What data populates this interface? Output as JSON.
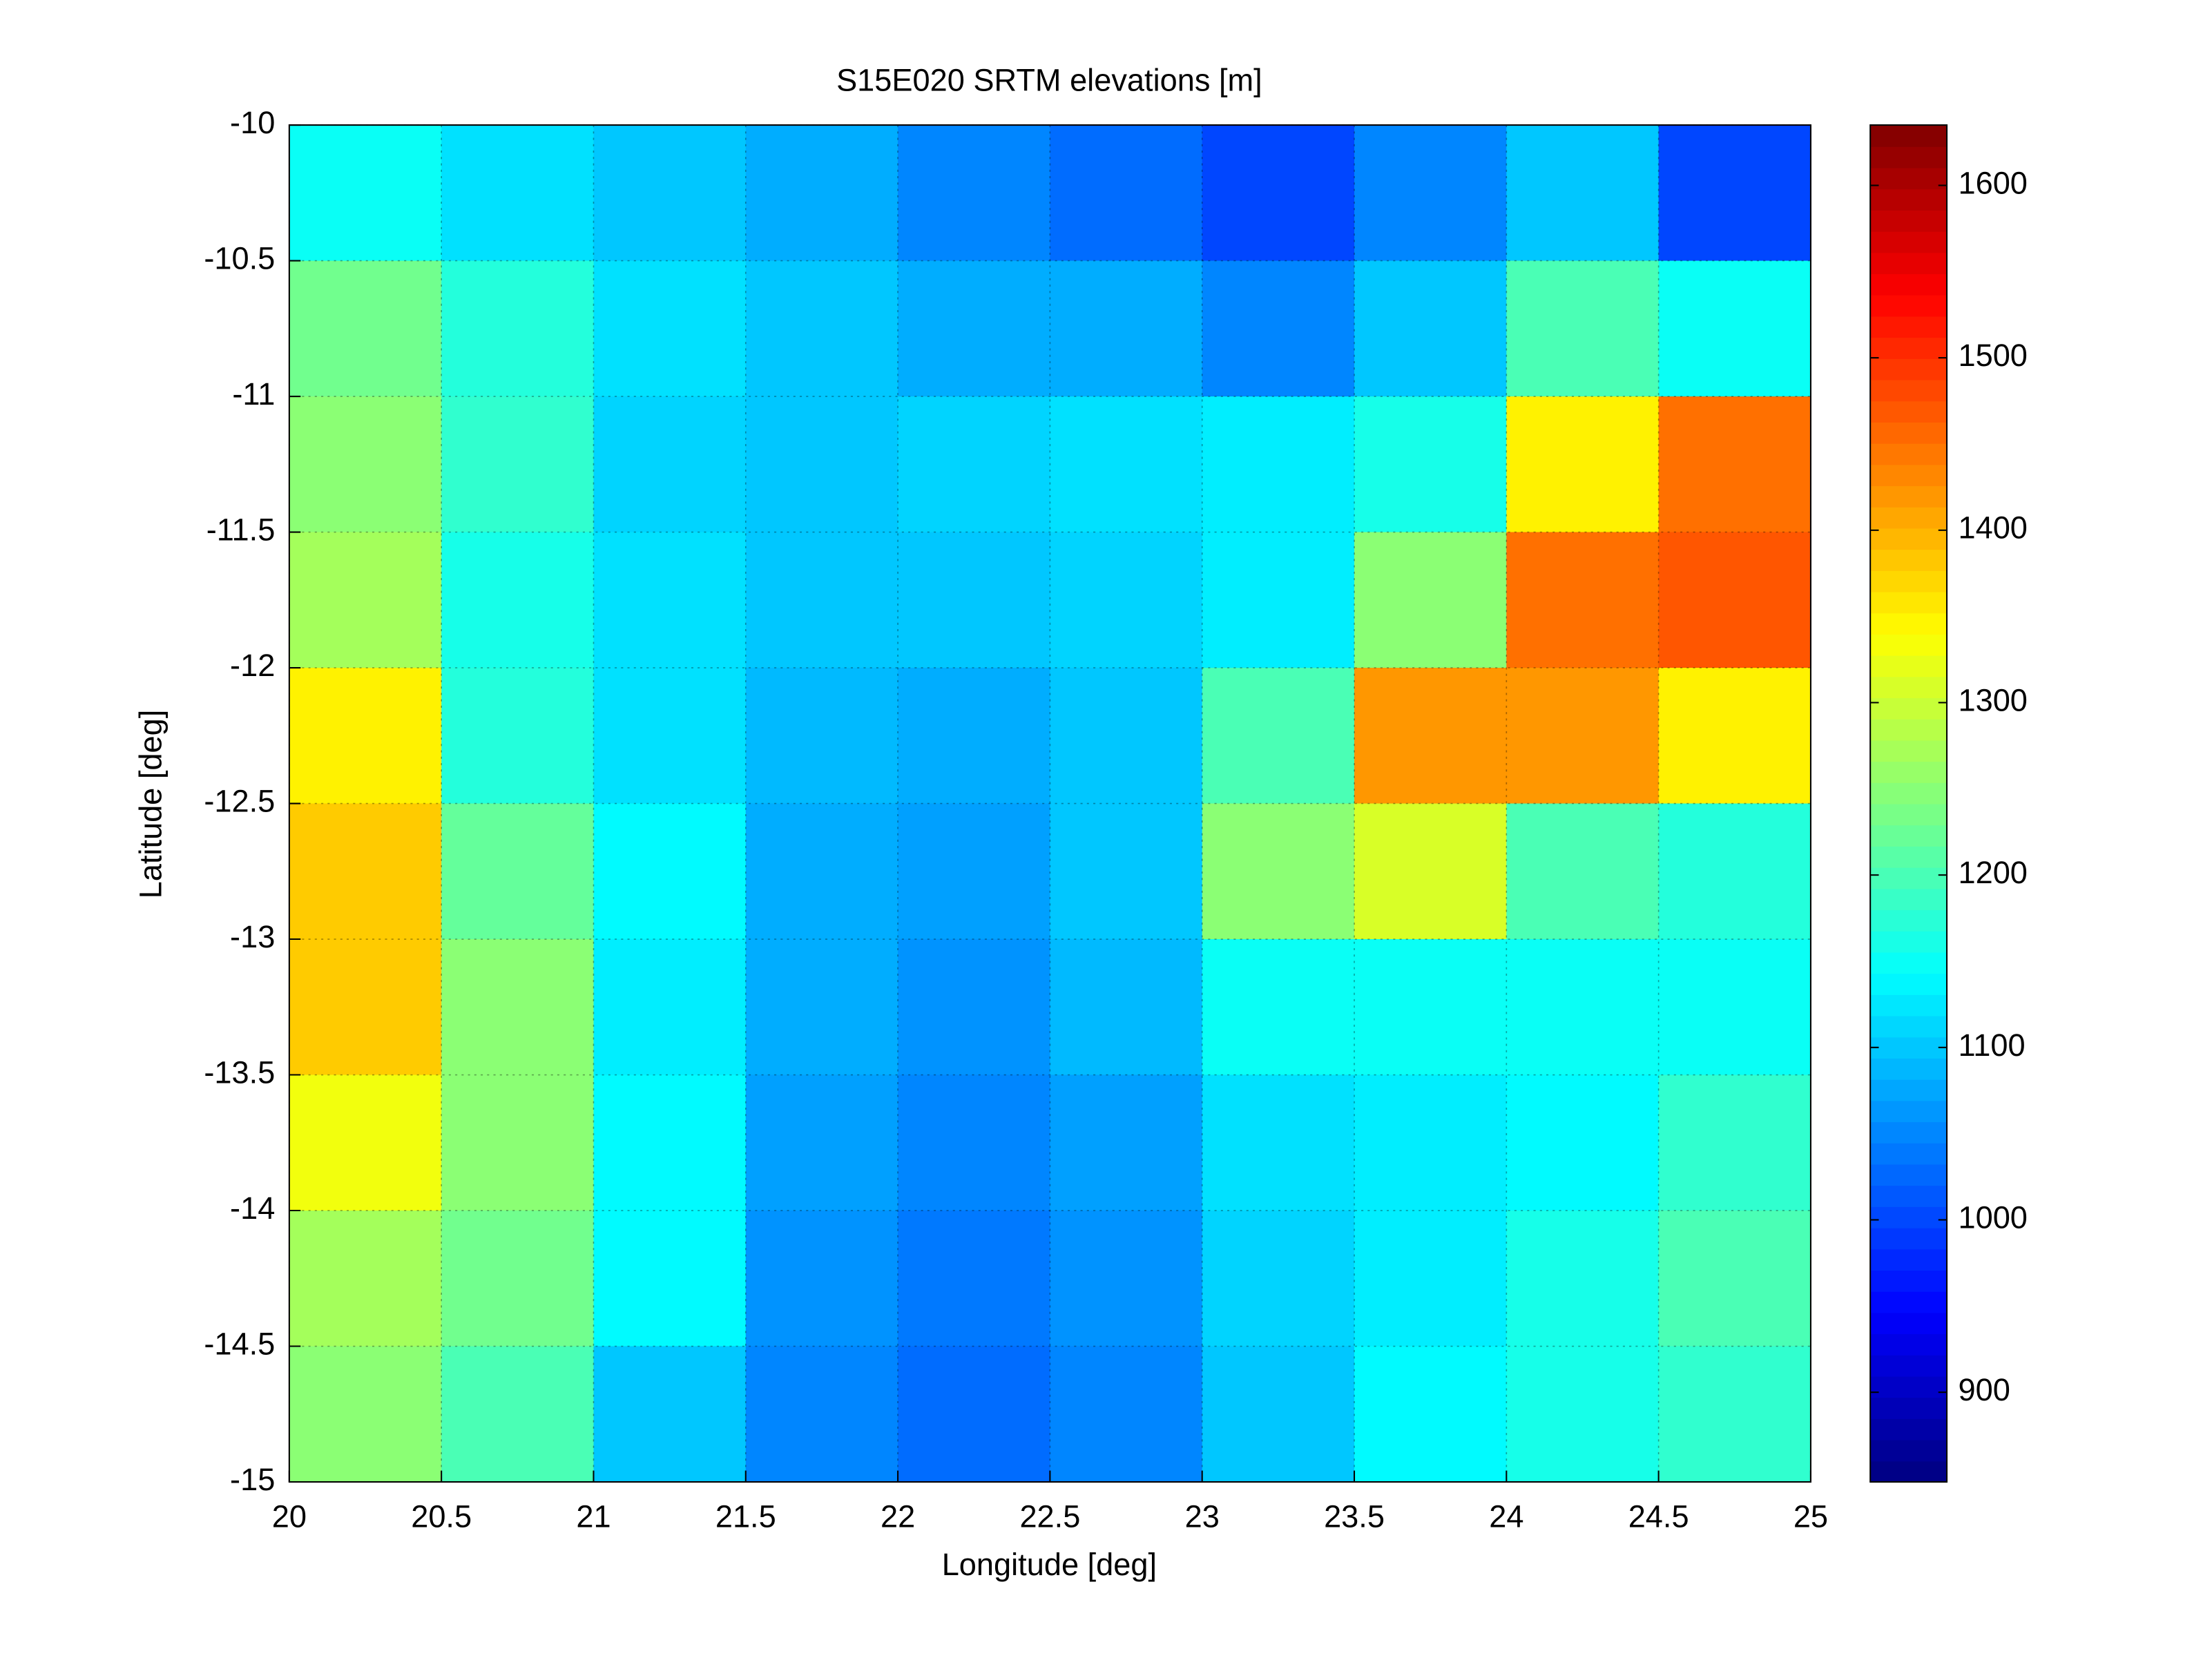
{
  "chart_data": {
    "type": "heatmap",
    "title": "S15E020 SRTM elevations [m]",
    "xlabel": "Longitude [deg]",
    "ylabel": "Latitude [deg]",
    "xlim": [
      20,
      25
    ],
    "ylim": [
      -15,
      -10
    ],
    "xticks": [
      20,
      20.5,
      21,
      21.5,
      22,
      22.5,
      23,
      23.5,
      24,
      24.5,
      25
    ],
    "yticks": [
      -10,
      -10.5,
      -11,
      -11.5,
      -12,
      -12.5,
      -13,
      -13.5,
      -14,
      -14.5,
      -15
    ],
    "grid": true,
    "colormap": "jet",
    "z": [
      [
        1150,
        1120,
        1100,
        1080,
        1050,
        1030,
        1000,
        1050,
        1100,
        1000
      ],
      [
        1230,
        1170,
        1120,
        1100,
        1080,
        1080,
        1050,
        1100,
        1200,
        1150
      ],
      [
        1250,
        1180,
        1110,
        1100,
        1110,
        1120,
        1130,
        1160,
        1350,
        1450
      ],
      [
        1270,
        1160,
        1120,
        1100,
        1100,
        1110,
        1130,
        1250,
        1450,
        1470
      ],
      [
        1350,
        1170,
        1120,
        1090,
        1080,
        1100,
        1200,
        1420,
        1420,
        1350
      ],
      [
        1380,
        1220,
        1140,
        1080,
        1070,
        1100,
        1250,
        1310,
        1200,
        1170
      ],
      [
        1380,
        1250,
        1130,
        1080,
        1060,
        1090,
        1150,
        1150,
        1150,
        1150
      ],
      [
        1330,
        1250,
        1140,
        1070,
        1050,
        1070,
        1120,
        1130,
        1140,
        1180
      ],
      [
        1270,
        1230,
        1140,
        1060,
        1040,
        1060,
        1110,
        1130,
        1160,
        1200
      ],
      [
        1250,
        1200,
        1100,
        1050,
        1030,
        1050,
        1100,
        1140,
        1160,
        1180
      ]
    ],
    "clim": [
      848,
      1635
    ],
    "cticks": [
      900,
      1000,
      1100,
      1200,
      1300,
      1400,
      1500,
      1600
    ]
  }
}
